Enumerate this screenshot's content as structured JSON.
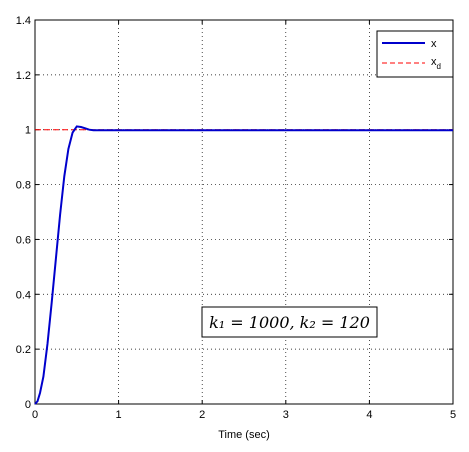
{
  "chart_data": {
    "type": "line",
    "xlabel": "Time (sec)",
    "ylabel": "",
    "xlim": [
      0,
      5
    ],
    "ylim": [
      0,
      1.4
    ],
    "xticks": [
      "0",
      "1",
      "2",
      "3",
      "4",
      "5"
    ],
    "yticks": [
      "0",
      "0.2",
      "0.4",
      "0.6",
      "0.8",
      "1",
      "1.2",
      "1.4"
    ],
    "grid": true,
    "legend_position": "top-right",
    "series": [
      {
        "name": "x",
        "color": "#0000cc",
        "style": "solid",
        "x": [
          0,
          0.03,
          0.06,
          0.1,
          0.15,
          0.2,
          0.25,
          0.3,
          0.35,
          0.4,
          0.45,
          0.5,
          0.55,
          0.6,
          0.65,
          0.7,
          0.8,
          1.0,
          1.5,
          2,
          3,
          4,
          5
        ],
        "y": [
          0,
          0.01,
          0.04,
          0.1,
          0.22,
          0.37,
          0.53,
          0.69,
          0.83,
          0.93,
          0.99,
          1.012,
          1.01,
          1.005,
          1.0,
          0.998,
          0.998,
          0.998,
          0.998,
          0.998,
          0.998,
          0.998,
          0.998
        ]
      },
      {
        "name": "x_d",
        "legend_main": "x",
        "legend_sub": "d",
        "color": "#ff0000",
        "style": "dashed",
        "x": [
          0,
          5
        ],
        "y": [
          1,
          1
        ]
      }
    ],
    "annotation": "k₁ = 1000, k₂ = 120"
  }
}
